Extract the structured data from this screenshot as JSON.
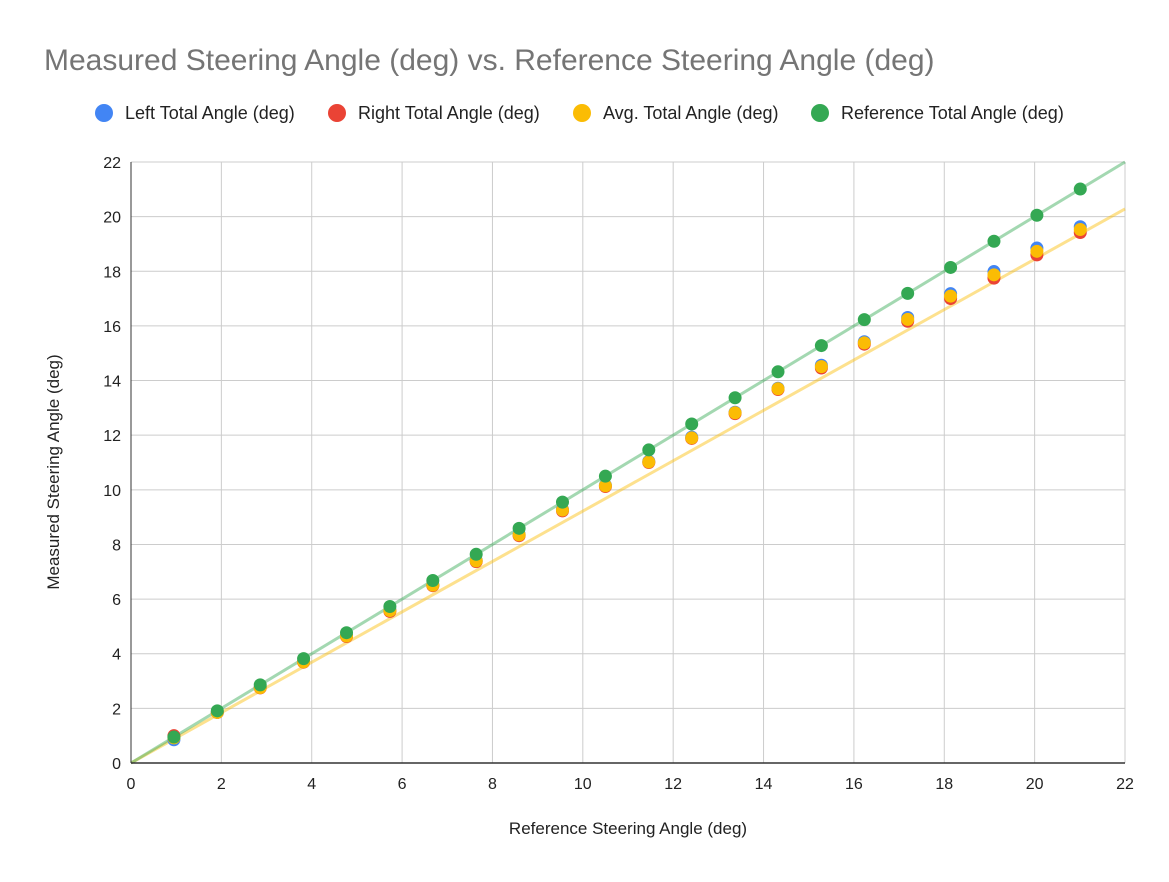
{
  "chart_data": {
    "type": "scatter",
    "title": "Measured Steering Angle (deg) vs. Reference Steering Angle (deg)",
    "xlabel": "Reference Steering Angle (deg)",
    "ylabel": "Measured Steering Angle (deg)",
    "xlim": [
      0,
      22
    ],
    "ylim": [
      0,
      22
    ],
    "xticks": [
      "0",
      "2",
      "4",
      "6",
      "8",
      "10",
      "12",
      "14",
      "16",
      "18",
      "20",
      "22"
    ],
    "yticks": [
      "0",
      "2",
      "4",
      "6",
      "8",
      "10",
      "12",
      "14",
      "16",
      "18",
      "20",
      "22"
    ],
    "grid": true,
    "legend_position": "top",
    "x": [
      0.95,
      1.91,
      2.86,
      3.82,
      4.77,
      5.73,
      6.68,
      7.64,
      8.59,
      9.55,
      10.5,
      11.46,
      12.41,
      13.37,
      14.32,
      15.28,
      16.23,
      17.19,
      18.14,
      19.1,
      20.05,
      21.01
    ],
    "series": [
      {
        "name": "Left Total Angle (deg)",
        "color": "#4285F4",
        "values": [
          0.85,
          1.85,
          2.77,
          3.71,
          4.67,
          5.6,
          6.52,
          7.42,
          8.37,
          9.28,
          10.17,
          11.04,
          11.93,
          12.84,
          13.72,
          14.56,
          15.42,
          16.31,
          17.18,
          17.99,
          18.85,
          19.63
        ]
      },
      {
        "name": "Right Total Angle (deg)",
        "color": "#EA4335",
        "values": [
          1.0,
          1.85,
          2.75,
          3.69,
          4.63,
          5.55,
          6.49,
          7.37,
          8.32,
          9.23,
          10.12,
          11.0,
          11.88,
          12.79,
          13.67,
          14.46,
          15.33,
          16.17,
          17.0,
          17.75,
          18.6,
          19.42
        ]
      },
      {
        "name": "Avg. Total Angle (deg)",
        "color": "#FBBC04",
        "values": [
          0.92,
          1.85,
          2.76,
          3.7,
          4.65,
          5.58,
          6.51,
          7.4,
          8.35,
          9.26,
          10.15,
          11.02,
          11.9,
          12.82,
          13.7,
          14.51,
          15.38,
          16.24,
          17.09,
          17.87,
          18.73,
          19.53
        ]
      },
      {
        "name": "Reference Total Angle (deg)",
        "color": "#34A853",
        "values": [
          0.95,
          1.91,
          2.86,
          3.82,
          4.77,
          5.73,
          6.68,
          7.64,
          8.59,
          9.55,
          10.5,
          11.46,
          12.41,
          13.37,
          14.32,
          15.28,
          16.23,
          17.19,
          18.14,
          19.1,
          20.05,
          21.01
        ]
      }
    ],
    "trendlines": [
      {
        "series": "Avg. Total Angle (deg)",
        "color": "#FBBC04",
        "slope": 0.922,
        "intercept": 0.0
      },
      {
        "series": "Reference Total Angle (deg)",
        "color": "#34A853",
        "slope": 1.0,
        "intercept": 0.0
      }
    ]
  }
}
